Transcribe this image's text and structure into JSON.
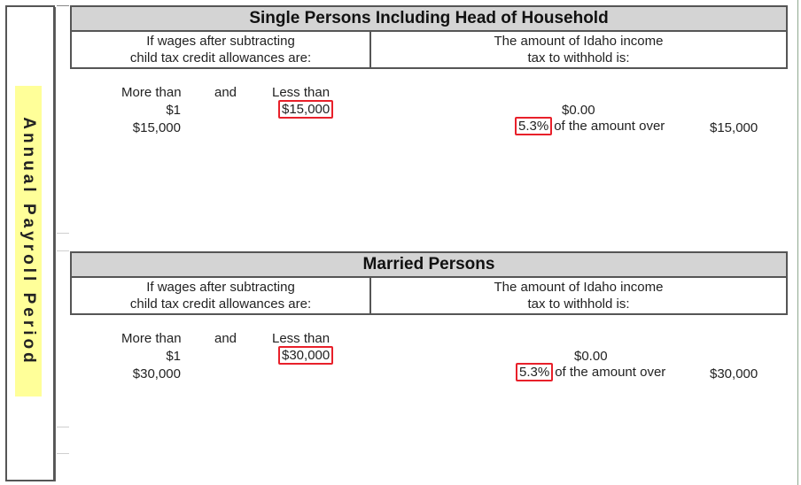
{
  "side_label": "Annual Payroll Period",
  "sections": [
    {
      "title": "Single Persons Including Head of Household",
      "col1_header": [
        "If wages after subtracting",
        "child tax credit allowances are:"
      ],
      "col2_header": [
        "The amount of Idaho income",
        "tax to withhold is:"
      ],
      "labels": {
        "more_than": "More than",
        "and": "and",
        "less_than": "Less than"
      },
      "rows": [
        {
          "more_than": "$1",
          "less_than": "$15,000",
          "withhold": "$0.00"
        },
        {
          "more_than": "$15,000",
          "rate": "5.3%",
          "rate_text": "of the amount over",
          "over": "$15,000"
        }
      ]
    },
    {
      "title": "Married Persons",
      "col1_header": [
        "If wages after subtracting",
        "child tax credit allowances are:"
      ],
      "col2_header": [
        "The amount of Idaho income",
        "tax to withhold is:"
      ],
      "labels": {
        "more_than": "More than",
        "and": "and",
        "less_than": "Less than"
      },
      "rows": [
        {
          "more_than": "$1",
          "less_than": "$30,000",
          "withhold": "$0.00"
        },
        {
          "more_than": "$30,000",
          "rate": "5.3%",
          "rate_text": "of the amount over",
          "over": "$30,000"
        }
      ]
    }
  ],
  "colors": {
    "highlight_border": "#e8202a",
    "side_label_bg": "#ffff99",
    "title_bg": "#d4d4d4"
  }
}
